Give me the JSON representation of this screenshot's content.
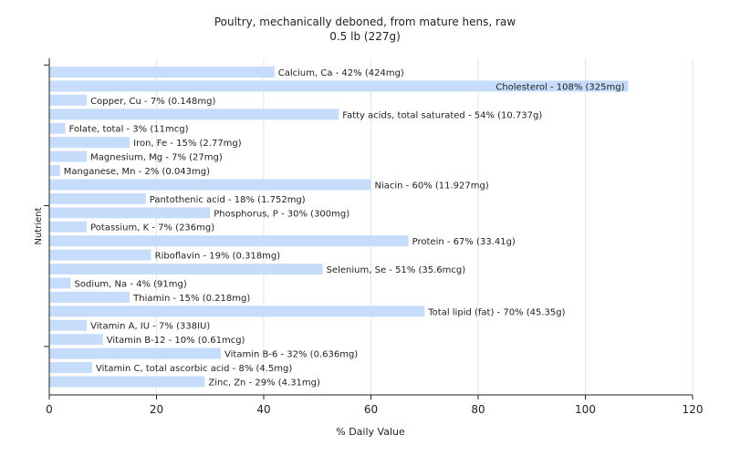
{
  "chart_data": {
    "type": "bar",
    "orientation": "horizontal",
    "title": "Poultry, mechanically deboned, from mature hens, raw",
    "subtitle": "0.5 lb (227g)",
    "xlabel": "% Daily Value",
    "ylabel": "Nutrient",
    "xlim": [
      0,
      120
    ],
    "xticks": [
      0,
      20,
      40,
      60,
      80,
      100,
      120
    ],
    "grid": true,
    "bar_color": "#c6dcfb",
    "categories": [
      "Calcium, Ca",
      "Cholesterol",
      "Copper, Cu",
      "Fatty acids, total saturated",
      "Folate, total",
      "Iron, Fe",
      "Magnesium, Mg",
      "Manganese, Mn",
      "Niacin",
      "Pantothenic acid",
      "Phosphorus, P",
      "Potassium, K",
      "Protein",
      "Riboflavin",
      "Selenium, Se",
      "Sodium, Na",
      "Thiamin",
      "Total lipid (fat)",
      "Vitamin A, IU",
      "Vitamin B-12",
      "Vitamin B-6",
      "Vitamin C, total ascorbic acid",
      "Zinc, Zn"
    ],
    "values": [
      42,
      108,
      7,
      54,
      3,
      15,
      7,
      2,
      60,
      18,
      30,
      7,
      67,
      19,
      51,
      4,
      15,
      70,
      7,
      10,
      32,
      8,
      29
    ],
    "labels": [
      "Calcium, Ca - 42% (424mg)",
      "Cholesterol - 108% (325mg)",
      "Copper, Cu - 7% (0.148mg)",
      "Fatty acids, total saturated - 54% (10.737g)",
      "Folate, total - 3% (11mcg)",
      "Iron, Fe - 15% (2.77mg)",
      "Magnesium, Mg - 7% (27mg)",
      "Manganese, Mn - 2% (0.043mg)",
      "Niacin - 60% (11.927mg)",
      "Pantothenic acid - 18% (1.752mg)",
      "Phosphorus, P - 30% (300mg)",
      "Potassium, K - 7% (236mg)",
      "Protein - 67% (33.41g)",
      "Riboflavin - 19% (0.318mg)",
      "Selenium, Se - 51% (35.6mcg)",
      "Sodium, Na - 4% (91mg)",
      "Thiamin - 15% (0.218mg)",
      "Total lipid (fat) - 70% (45.35g)",
      "Vitamin A, IU - 7% (338IU)",
      "Vitamin B-12 - 10% (0.61mcg)",
      "Vitamin B-6 - 32% (0.636mg)",
      "Vitamin C, total ascorbic acid - 8% (4.5mg)",
      "Zinc, Zn - 29% (4.31mg)"
    ]
  }
}
